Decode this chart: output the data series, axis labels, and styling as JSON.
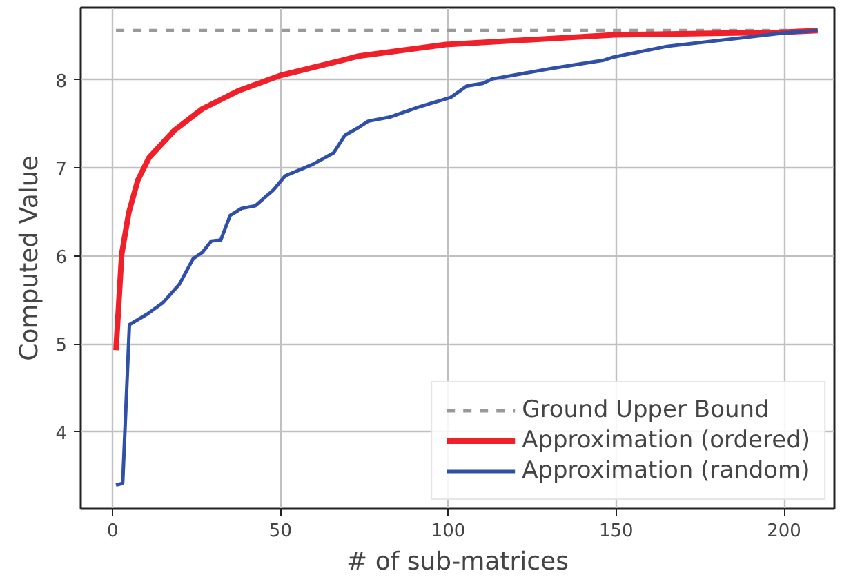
{
  "chart_data": {
    "type": "line",
    "xlabel": "# of sub-matrices",
    "ylabel": "Computed Value",
    "xlim": [
      -9.5,
      215
    ],
    "ylim": [
      3.13,
      8.82
    ],
    "xticks": [
      0,
      50,
      100,
      150,
      200
    ],
    "yticks": [
      4,
      5,
      6,
      7,
      8
    ],
    "grid": true,
    "legend": "bottom right",
    "line_style": "solid",
    "marker": "none",
    "ref_lines": [
      {
        "axis": "y",
        "value": 8.56,
        "label": "Ground Upper Bound",
        "color": "#999999",
        "line_style": "dashed"
      }
    ],
    "series": [
      {
        "name": "Approximation (ordered)",
        "color": "#f0202a",
        "x": [
          1,
          2.7,
          4.8,
          7.5,
          10.9,
          18.5,
          26.7,
          37.7,
          50,
          69.2,
          73.3,
          99.3,
          149.4,
          199,
          210
        ],
        "values": [
          4.93,
          6.02,
          6.49,
          6.86,
          7.12,
          7.43,
          7.67,
          7.88,
          8.05,
          8.23,
          8.27,
          8.4,
          8.51,
          8.54,
          8.56
        ]
      },
      {
        "name": "Approximation (random)",
        "color": "#3050a8",
        "x": [
          1,
          3,
          5,
          10.3,
          15,
          19.9,
          24,
          26.7,
          29.4,
          32.2,
          35,
          38.4,
          42.5,
          47.9,
          51.4,
          59.6,
          65.8,
          69.2,
          73.3,
          76.1,
          82.9,
          91.1,
          100.7,
          105.5,
          110.3,
          113.1,
          130.9,
          146,
          149.4,
          165.1,
          185.7,
          199.4,
          210
        ],
        "values": [
          3.4,
          3.42,
          5.22,
          5.34,
          5.47,
          5.68,
          5.97,
          6.04,
          6.17,
          6.18,
          6.46,
          6.54,
          6.57,
          6.75,
          6.91,
          7.04,
          7.17,
          7.37,
          7.46,
          7.53,
          7.58,
          7.69,
          7.8,
          7.93,
          7.96,
          8.01,
          8.13,
          8.22,
          8.26,
          8.38,
          8.47,
          8.53,
          8.56
        ]
      }
    ]
  }
}
